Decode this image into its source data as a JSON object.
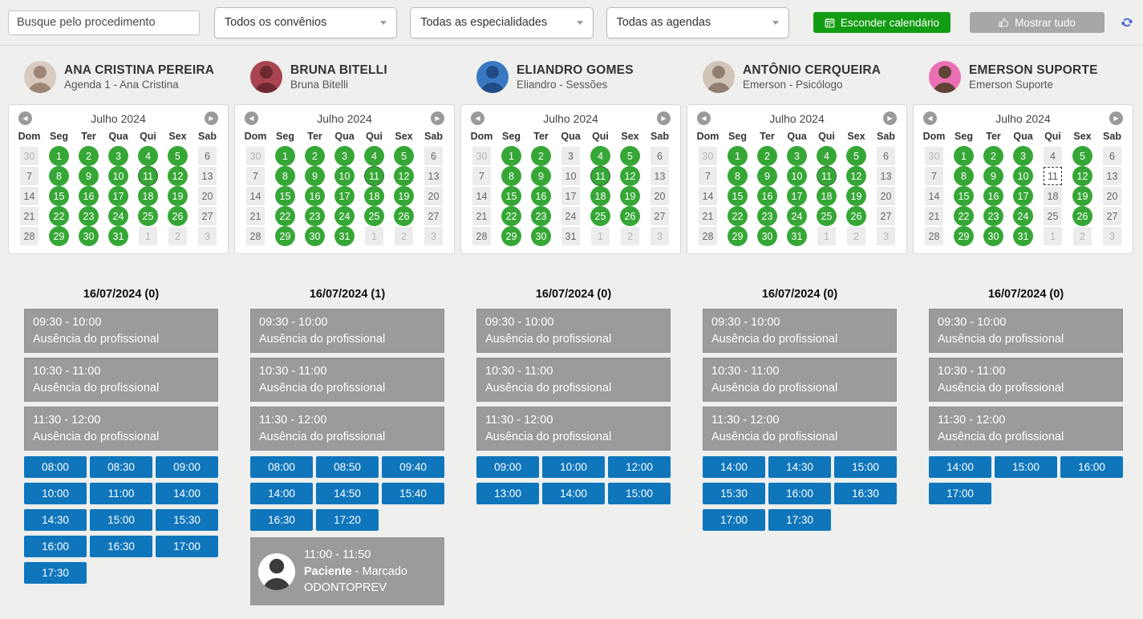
{
  "topbar": {
    "search_placeholder": "Busque pelo procedimento",
    "filters": [
      "Todos os convênios",
      "Todas as especialidades",
      "Todas as agendas"
    ],
    "hide_calendar_label": "Esconder calendário",
    "show_all_label": "Mostrar tudo"
  },
  "calendar": {
    "prev_arrow": "◀",
    "next_arrow": "▶",
    "month_title": "Julho 2024",
    "weekdays": [
      "Dom",
      "Seg",
      "Ter",
      "Qua",
      "Qui",
      "Sex",
      "Sab"
    ],
    "today": 11,
    "grid": [
      [
        {
          "d": 30,
          "o": 1
        },
        {
          "d": 1
        },
        {
          "d": 2
        },
        {
          "d": 3
        },
        {
          "d": 4
        },
        {
          "d": 5
        },
        {
          "d": 6
        }
      ],
      [
        {
          "d": 7
        },
        {
          "d": 8
        },
        {
          "d": 9
        },
        {
          "d": 10
        },
        {
          "d": 11
        },
        {
          "d": 12
        },
        {
          "d": 13
        }
      ],
      [
        {
          "d": 14
        },
        {
          "d": 15
        },
        {
          "d": 16
        },
        {
          "d": 17
        },
        {
          "d": 18
        },
        {
          "d": 19
        },
        {
          "d": 20
        }
      ],
      [
        {
          "d": 21
        },
        {
          "d": 22
        },
        {
          "d": 23
        },
        {
          "d": 24
        },
        {
          "d": 25
        },
        {
          "d": 26
        },
        {
          "d": 27
        }
      ],
      [
        {
          "d": 28
        },
        {
          "d": 29
        },
        {
          "d": 30
        },
        {
          "d": 31
        },
        {
          "d": 1,
          "o": 1
        },
        {
          "d": 2,
          "o": 1
        },
        {
          "d": 3,
          "o": 1
        }
      ]
    ]
  },
  "colors": {
    "available_green": "#36a736",
    "slot_blue": "#0f76bc",
    "absence_gray": "#9b9b9b",
    "hide_button_green": "#129c12",
    "show_all_gray": "#a7a7a7",
    "refresh_blue": "#2a50dc"
  },
  "columns": [
    {
      "name": "ANA CRISTINA PEREIRA",
      "subtitle": "Agenda 1 - Ana Cristina",
      "avatar_bg": "#d8cbbd",
      "avatar_fg": "#9b8575",
      "available_days": [
        1,
        2,
        3,
        4,
        5,
        8,
        9,
        10,
        11,
        12,
        15,
        16,
        17,
        18,
        19,
        22,
        23,
        24,
        25,
        26,
        29,
        30,
        31
      ],
      "today_state": "available",
      "date_header": "16/07/2024 (0)",
      "absences": [
        {
          "time": "09:30 - 10:00",
          "label": "Ausência do profissional"
        },
        {
          "time": "10:30 - 11:00",
          "label": "Ausência do profissional"
        },
        {
          "time": "11:30 - 12:00",
          "label": "Ausência do profissional"
        }
      ],
      "slots": [
        "08:00",
        "08:30",
        "09:00",
        "10:00",
        "11:00",
        "14:00",
        "14:30",
        "15:00",
        "15:30",
        "16:00",
        "16:30",
        "17:00",
        "17:30"
      ],
      "appointment": null
    },
    {
      "name": "BRUNA BITELLI",
      "subtitle": "Bruna Bitelli",
      "avatar_bg": "#a84550",
      "avatar_fg": "#6e2830",
      "available_days": [
        1,
        2,
        3,
        4,
        5,
        8,
        9,
        10,
        11,
        12,
        15,
        16,
        17,
        18,
        19,
        22,
        23,
        24,
        25,
        26,
        29,
        30,
        31
      ],
      "today_state": "available",
      "date_header": "16/07/2024 (1)",
      "absences": [
        {
          "time": "09:30 - 10:00",
          "label": "Ausência do profissional"
        },
        {
          "time": "10:30 - 11:00",
          "label": "Ausência do profissional"
        },
        {
          "time": "11:30 - 12:00",
          "label": "Ausência do profissional"
        }
      ],
      "slots": [
        "08:00",
        "08:50",
        "09:40",
        "14:00",
        "14:50",
        "15:40",
        "16:30",
        "17:20"
      ],
      "appointment": {
        "time": "11:00 - 11:50",
        "patient": "Paciente",
        "status_rest": " - Marcado",
        "insurance": "ODONTOPREV"
      }
    },
    {
      "name": "ELIANDRO GOMES",
      "subtitle": "Eliandro - Sessões",
      "avatar_bg": "#3a79c2",
      "avatar_fg": "#1f4c85",
      "available_days": [
        1,
        2,
        4,
        5,
        8,
        9,
        11,
        12,
        15,
        16,
        18,
        19,
        22,
        23,
        25,
        26,
        29,
        30
      ],
      "today_state": "available",
      "date_header": "16/07/2024 (0)",
      "absences": [
        {
          "time": "09:30 - 10:00",
          "label": "Ausência do profissional"
        },
        {
          "time": "10:30 - 11:00",
          "label": "Ausência do profissional"
        },
        {
          "time": "11:30 - 12:00",
          "label": "Ausência do profissional"
        }
      ],
      "slots": [
        "09:00",
        "10:00",
        "12:00",
        "13:00",
        "14:00",
        "15:00"
      ],
      "appointment": null
    },
    {
      "name": "ANTÔNIO CERQUEIRA",
      "subtitle": "Emerson - Psicólogo",
      "avatar_bg": "#cfc4b6",
      "avatar_fg": "#8f7f6e",
      "available_days": [
        1,
        2,
        3,
        4,
        5,
        8,
        9,
        10,
        11,
        12,
        15,
        16,
        17,
        18,
        19,
        22,
        23,
        24,
        25,
        26,
        29,
        30,
        31
      ],
      "today_state": "available",
      "date_header": "16/07/2024 (0)",
      "absences": [
        {
          "time": "09:30 - 10:00",
          "label": "Ausência do profissional"
        },
        {
          "time": "10:30 - 11:00",
          "label": "Ausência do profissional"
        },
        {
          "time": "11:30 - 12:00",
          "label": "Ausência do profissional"
        }
      ],
      "slots": [
        "14:00",
        "14:30",
        "15:00",
        "15:30",
        "16:00",
        "16:30",
        "17:00",
        "17:30"
      ],
      "appointment": null
    },
    {
      "name": "EMERSON SUPORTE",
      "subtitle": "Emerson Suporte",
      "avatar_bg": "#ec6fb4",
      "avatar_fg": "#5f4436",
      "available_days": [
        1,
        2,
        3,
        5,
        8,
        9,
        10,
        12,
        15,
        16,
        17,
        19,
        22,
        23,
        24,
        26,
        29,
        30,
        31
      ],
      "today_state": "off",
      "date_header": "16/07/2024 (0)",
      "absences": [
        {
          "time": "09:30 - 10:00",
          "label": "Ausência do profissional"
        },
        {
          "time": "10:30 - 11:00",
          "label": "Ausência do profissional"
        },
        {
          "time": "11:30 - 12:00",
          "label": "Ausência do profissional"
        }
      ],
      "slots": [
        "14:00",
        "15:00",
        "16:00",
        "17:00"
      ],
      "appointment": null
    }
  ]
}
